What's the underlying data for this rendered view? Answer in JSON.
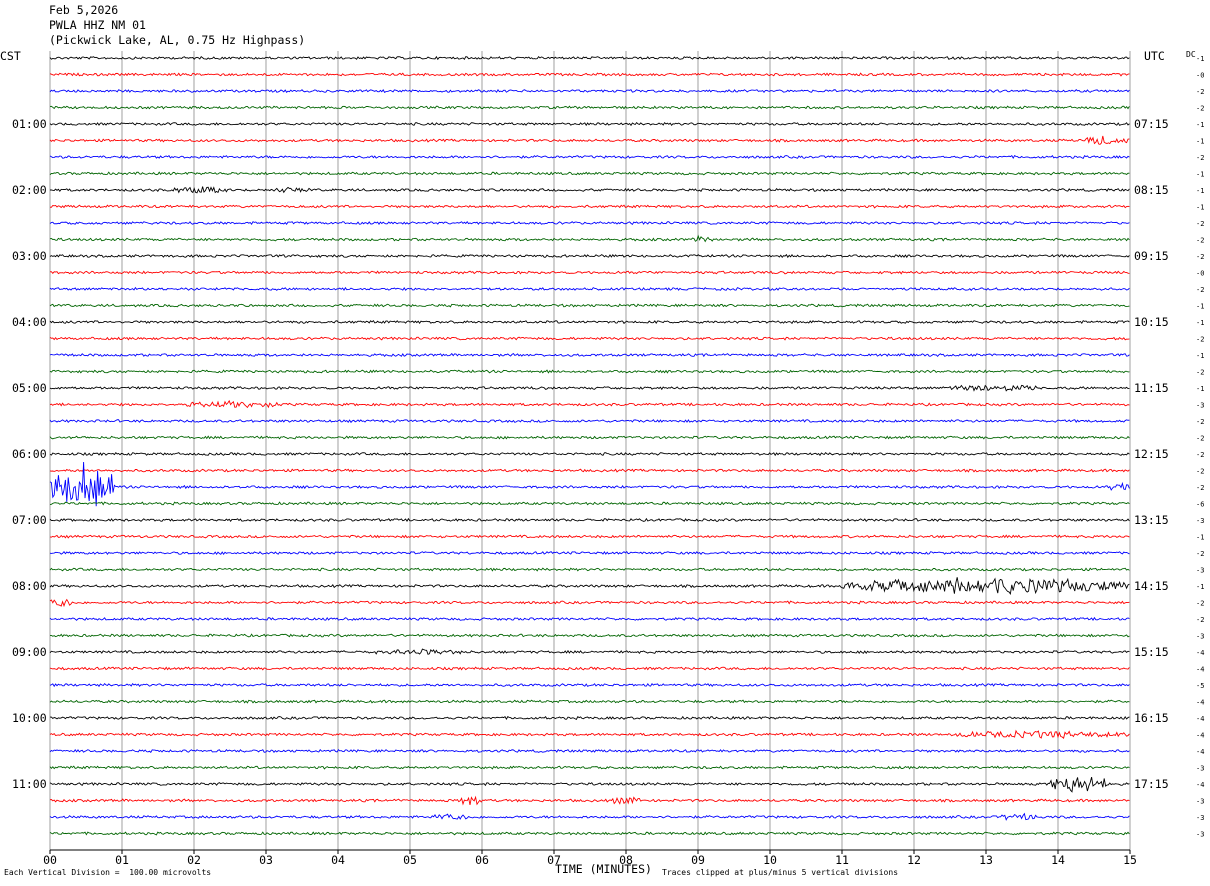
{
  "header": {
    "date": "Feb 5,2026",
    "station": "PWLA HHZ NM 01",
    "location": "(Pickwick Lake, AL, 0.75 Hz Highpass)"
  },
  "left_tz": "CST",
  "right_tz": "UTC",
  "dc_label": "DC",
  "footer": {
    "scale_note": "Each Vertical Division =  100.00 microvolts",
    "x_title": "TIME (MINUTES)",
    "clip_note": "Traces clipped at plus/minus 5 vertical divisions"
  },
  "chart_data": {
    "type": "line",
    "title": "PWLA HHZ NM 01",
    "xlabel": "TIME (MINUTES)",
    "xlim": [
      0,
      15
    ],
    "x_ticks": [
      "00",
      "01",
      "02",
      "03",
      "04",
      "05",
      "06",
      "07",
      "08",
      "09",
      "10",
      "11",
      "12",
      "13",
      "14",
      "15"
    ],
    "rows_per_hour": 4,
    "row_minutes": 15,
    "trace_colors": [
      "#000000",
      "#ff0000",
      "#0000ff",
      "#006400"
    ],
    "left_time_labels": [
      "01:00",
      "02:00",
      "03:00",
      "04:00",
      "05:00",
      "06:00",
      "07:00",
      "08:00",
      "09:00",
      "10:00",
      "11:00"
    ],
    "right_time_labels": [
      "07:15",
      "08:15",
      "09:15",
      "10:15",
      "11:15",
      "12:15",
      "13:15",
      "14:15",
      "15:15",
      "16:15",
      "17:15"
    ],
    "label_first_row": 4,
    "dc_offsets": [
      "-1",
      "-0",
      "-2",
      "-2",
      "-1",
      "-1",
      "-2",
      "-1",
      "-1",
      "-1",
      "-2",
      "-2",
      "-2",
      "-0",
      "-2",
      "-1",
      "-1",
      "-2",
      "-1",
      "-2",
      "-1",
      "-3",
      "-2",
      "-2",
      "-2",
      "-2",
      "-2",
      "-6",
      "-3",
      "-1",
      "-2",
      "-3",
      "-1",
      "-2",
      "-2",
      "-3",
      "-4",
      "-4",
      "-5",
      "-4",
      "-4",
      "-4",
      "-4",
      "-3",
      "-4",
      "-3",
      "-3",
      "-3"
    ],
    "events": [
      {
        "row": 8,
        "minute_start": 1.7,
        "minute_end": 2.5,
        "amplitude": 3
      },
      {
        "row": 8,
        "minute_start": 3.1,
        "minute_end": 3.6,
        "amplitude": 2
      },
      {
        "row": 5,
        "minute_start": 14.3,
        "minute_end": 15.0,
        "amplitude": 4
      },
      {
        "row": 11,
        "minute_start": 8.9,
        "minute_end": 9.2,
        "amplitude": 3
      },
      {
        "row": 20,
        "minute_start": 12.5,
        "minute_end": 13.7,
        "amplitude": 3
      },
      {
        "row": 21,
        "minute_start": 1.9,
        "minute_end": 3.2,
        "amplitude": 3
      },
      {
        "row": 26,
        "minute_start": 0.0,
        "minute_end": 0.9,
        "amplitude": 28
      },
      {
        "row": 26,
        "minute_start": 14.7,
        "minute_end": 15.0,
        "amplitude": 5
      },
      {
        "row": 32,
        "minute_start": 11.0,
        "minute_end": 15.0,
        "amplitude": 9
      },
      {
        "row": 33,
        "minute_start": 0.0,
        "minute_end": 0.3,
        "amplitude": 5
      },
      {
        "row": 36,
        "minute_start": 4.5,
        "minute_end": 5.7,
        "amplitude": 2
      },
      {
        "row": 41,
        "minute_start": 12.5,
        "minute_end": 15.0,
        "amplitude": 3
      },
      {
        "row": 44,
        "minute_start": 13.9,
        "minute_end": 14.7,
        "amplitude": 11
      },
      {
        "row": 45,
        "minute_start": 5.7,
        "minute_end": 6.0,
        "amplitude": 6
      },
      {
        "row": 45,
        "minute_start": 7.8,
        "minute_end": 8.2,
        "amplitude": 5
      },
      {
        "row": 46,
        "minute_start": 5.3,
        "minute_end": 5.8,
        "amplitude": 3
      },
      {
        "row": 46,
        "minute_start": 13.2,
        "minute_end": 13.7,
        "amplitude": 3
      }
    ]
  }
}
